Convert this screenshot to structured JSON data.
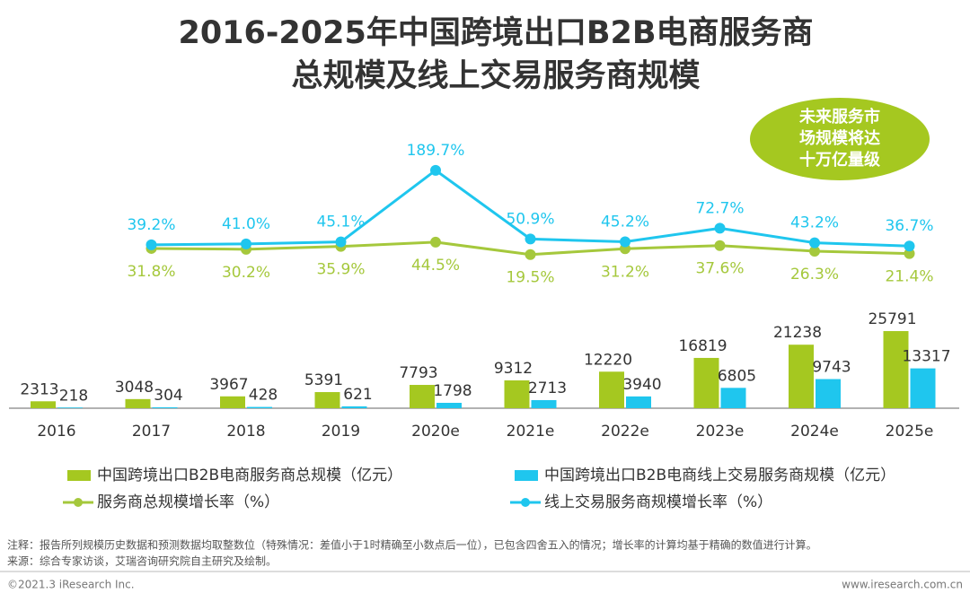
{
  "chart_data": {
    "type": "bar",
    "title": [
      "2016-2025年中国跨境出口B2B电商服务商",
      "总规模及线上交易服务商规模"
    ],
    "annotation": [
      "未来服务市",
      "场规模将达",
      "十万亿量级"
    ],
    "categories": [
      "2016",
      "2017",
      "2018",
      "2019",
      "2020e",
      "2021e",
      "2022e",
      "2023e",
      "2024e",
      "2025e"
    ],
    "ylim": [
      0,
      30000
    ],
    "y2lim": [
      -10,
      280
    ],
    "series": [
      {
        "name": "中国跨境出口B2B电商服务商总规模（亿元）",
        "type": "bar",
        "color": "#a5c820",
        "values": [
          2313,
          3048,
          3967,
          5391,
          7793,
          9312,
          12220,
          16819,
          21238,
          25791
        ]
      },
      {
        "name": "中国跨境出口B2B电商线上交易服务商规模（亿元）",
        "type": "bar",
        "color": "#1fc6ee",
        "values": [
          218,
          304,
          428,
          621,
          1798,
          2713,
          3940,
          6805,
          9743,
          13317
        ]
      },
      {
        "name": "服务商总规模增长率（%）",
        "type": "line",
        "axis": "y2",
        "color": "#a5c83c",
        "values": [
          null,
          31.8,
          30.2,
          35.9,
          44.5,
          19.5,
          31.2,
          37.6,
          26.3,
          21.4
        ],
        "value_labels": [
          null,
          "31.8%",
          "30.2%",
          "35.9%",
          "44.5%",
          "19.5%",
          "31.2%",
          "37.6%",
          "26.3%",
          "21.4%"
        ]
      },
      {
        "name": "线上交易服务商规模增长率（%）",
        "type": "line",
        "axis": "y2",
        "color": "#1fc6ee",
        "values": [
          null,
          39.2,
          41.0,
          45.1,
          189.7,
          50.9,
          45.2,
          72.7,
          43.2,
          36.7
        ],
        "value_labels": [
          null,
          "39.2%",
          "41.0%",
          "45.1%",
          "189.7%",
          "50.9%",
          "45.2%",
          "72.7%",
          "43.2%",
          "36.7%"
        ]
      }
    ]
  },
  "footer": {
    "note": "注释：报告所列规模历史数据和预测数据均取整数位（特殊情况：差值小于1时精确至小数点后一位），已包含四舍五入的情况；增长率的计算均基于精确的数值进行计算。",
    "source": "来源：综合专家访谈，艾瑞咨询研究院自主研究及绘制。",
    "copyright": "©2021.3 iResearch Inc.",
    "website": "www.iresearch.com.cn"
  }
}
